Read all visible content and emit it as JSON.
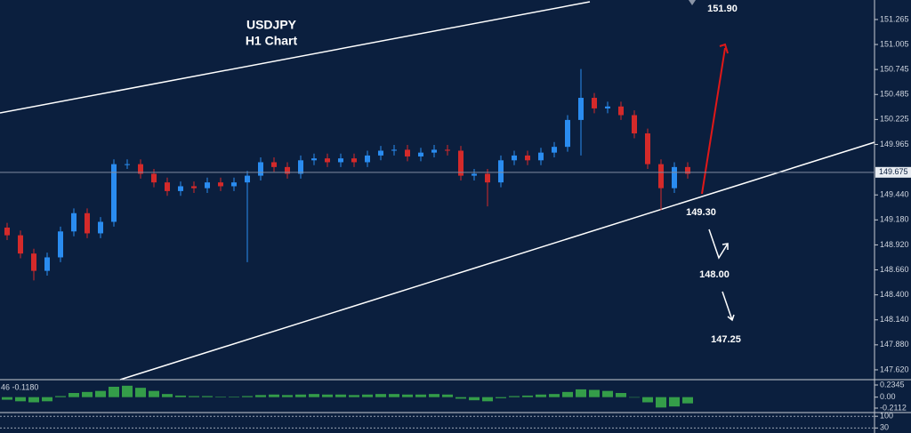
{
  "chart_data": [
    {
      "type": "candlestick",
      "title": "USDJPY",
      "subtitle": "H1 Chart",
      "series": [
        {
          "open": [
            149.1,
            149.02,
            148.83,
            148.65,
            148.79,
            149.06,
            149.25,
            149.04,
            149.16,
            149.76,
            149.76,
            149.66,
            149.57,
            149.48,
            149.53,
            149.51,
            149.57,
            149.53,
            149.57,
            149.64,
            149.78,
            149.73,
            149.66,
            149.8,
            149.82,
            149.78,
            149.82,
            149.78,
            149.85,
            149.9,
            149.91,
            149.84,
            149.88,
            149.91,
            149.9,
            149.64,
            149.66,
            149.57,
            149.8,
            149.85,
            149.8,
            149.88,
            149.94,
            150.22,
            150.45,
            150.34,
            150.36,
            150.27,
            150.08,
            149.76,
            149.51,
            149.73
          ],
          "high": [
            149.15,
            149.07,
            148.88,
            148.84,
            149.11,
            149.3,
            149.3,
            149.21,
            149.81,
            149.81,
            149.81,
            149.71,
            149.62,
            149.58,
            149.58,
            149.62,
            149.62,
            149.62,
            149.69,
            149.83,
            149.83,
            149.78,
            149.85,
            149.87,
            149.87,
            149.87,
            149.87,
            149.9,
            149.95,
            149.96,
            149.96,
            149.93,
            149.96,
            149.96,
            149.95,
            149.71,
            149.71,
            149.85,
            149.9,
            149.9,
            149.93,
            149.99,
            150.27,
            150.75,
            150.5,
            150.41,
            150.41,
            150.32,
            150.13,
            149.81,
            149.78,
            149.78
          ],
          "low": [
            148.97,
            148.78,
            148.55,
            148.6,
            148.74,
            149.01,
            148.99,
            148.99,
            149.11,
            149.71,
            149.61,
            149.52,
            149.43,
            149.43,
            149.46,
            149.46,
            149.48,
            149.48,
            148.74,
            149.59,
            149.68,
            149.61,
            149.61,
            149.75,
            149.73,
            149.73,
            149.73,
            149.73,
            149.8,
            149.85,
            149.79,
            149.79,
            149.83,
            149.85,
            149.59,
            149.59,
            149.32,
            149.52,
            149.75,
            149.75,
            149.75,
            149.83,
            149.89,
            149.85,
            150.29,
            150.29,
            150.22,
            150.03,
            149.71,
            149.28,
            149.46,
            149.61
          ],
          "close": [
            149.02,
            148.83,
            148.65,
            148.79,
            149.06,
            149.25,
            149.04,
            149.16,
            149.76,
            149.76,
            149.66,
            149.57,
            149.48,
            149.53,
            149.51,
            149.57,
            149.53,
            149.57,
            149.64,
            149.78,
            149.73,
            149.66,
            149.8,
            149.82,
            149.78,
            149.82,
            149.78,
            149.85,
            149.9,
            149.91,
            149.84,
            149.88,
            149.91,
            149.9,
            149.64,
            149.66,
            149.57,
            149.8,
            149.85,
            149.8,
            149.88,
            149.94,
            150.22,
            150.45,
            150.34,
            150.36,
            150.27,
            150.08,
            149.76,
            149.51,
            149.73,
            149.66
          ]
        }
      ],
      "up_color": "#2a8cf0",
      "down_color": "#d42a2a",
      "last_price": 149.675,
      "annotations": [
        "151.90",
        "149.30",
        "148.00",
        "147.25"
      ],
      "ylim": [
        147.527,
        151.468
      ],
      "yticks": [
        151.265,
        151.005,
        150.745,
        150.485,
        150.225,
        149.965,
        {
          "value": 149.44,
          "label": "149.440"
        },
        {
          "value": 149.18,
          "label": "149.180"
        },
        {
          "value": 148.92,
          "label": "148.920"
        },
        {
          "value": 148.66,
          "label": "148.660"
        },
        {
          "value": 148.4,
          "label": "148.400"
        },
        {
          "value": 148.14,
          "label": "148.140"
        },
        {
          "value": 147.88,
          "label": "147.880"
        },
        {
          "value": 147.62,
          "label": "147.620"
        }
      ]
    },
    {
      "type": "bar",
      "label": "46 -0.1180",
      "color": "#3cb44b",
      "values": [
        -0.05,
        -0.08,
        -0.1,
        -0.08,
        0.02,
        0.08,
        0.1,
        0.12,
        0.2,
        0.22,
        0.18,
        0.12,
        0.06,
        0.03,
        0.02,
        0.02,
        0.01,
        0.01,
        0.02,
        0.04,
        0.05,
        0.04,
        0.05,
        0.06,
        0.05,
        0.05,
        0.04,
        0.05,
        0.06,
        0.06,
        0.05,
        0.05,
        0.06,
        0.05,
        -0.03,
        -0.06,
        -0.08,
        -0.02,
        0.02,
        0.03,
        0.05,
        0.06,
        0.1,
        0.15,
        0.14,
        0.12,
        0.08,
        0.0,
        -0.1,
        -0.2,
        -0.18,
        -0.12
      ],
      "ylim": [
        -0.28,
        0.32
      ],
      "yticks": [
        0.2345,
        {
          "value": 0,
          "label": "0.00"
        },
        -0.2112
      ]
    },
    {
      "type": "levels",
      "ylim": [
        0,
        117
      ],
      "yticks": [
        100,
        30
      ]
    }
  ]
}
